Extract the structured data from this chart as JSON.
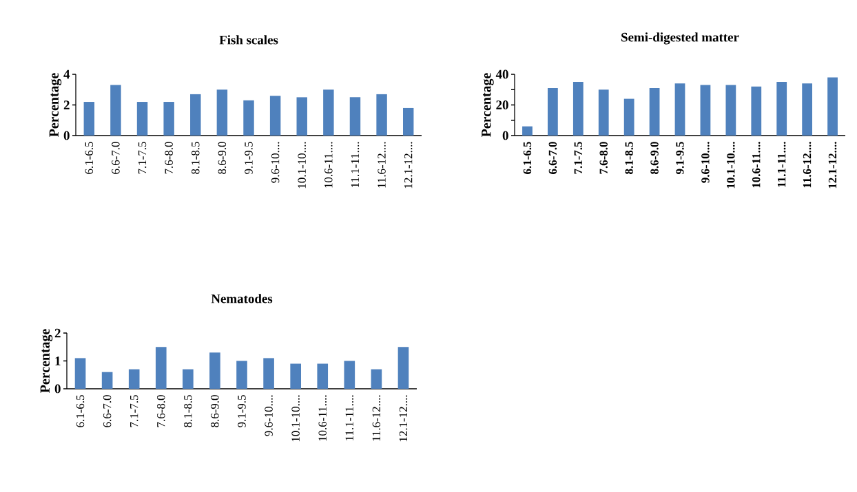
{
  "chart_data": [
    {
      "type": "bar",
      "title": "Fish scales",
      "ylabel": "Percentage",
      "categories": [
        "6.1-6.5",
        "6.6-7.0",
        "7.1-7.5",
        "7.6-8.0",
        "8.1-8.5",
        "8.6-9.0",
        "9.1-9.5",
        "9.6-10....",
        "10.1-10....",
        "10.6-11....",
        "11.1-11....",
        "11.6-12....",
        "12.1-12...."
      ],
      "values": [
        2.2,
        3.3,
        2.2,
        2.2,
        2.7,
        3.0,
        2.3,
        2.6,
        2.5,
        3.0,
        2.5,
        2.7,
        1.8
      ],
      "color": "#4f81bd",
      "ylim": [
        0,
        4
      ],
      "yticks": [
        0,
        2,
        4
      ]
    },
    {
      "type": "bar",
      "title": "Semi-digested matter",
      "ylabel": "Percentage",
      "categories": [
        "6.1-6.5",
        "6.6-7.0",
        "7.1-7.5",
        "7.6-8.0",
        "8.1-8.5",
        "8.6-9.0",
        "9.1-9.5",
        "9.6-10....",
        "10.1-10....",
        "10.6-11....",
        "11.1-11....",
        "11.6-12....",
        "12.1-12...."
      ],
      "values": [
        6,
        31,
        35,
        30,
        24,
        31,
        34,
        33,
        33,
        32,
        35,
        34,
        38
      ],
      "color": "#4f81bd",
      "ylim": [
        0,
        40
      ],
      "yticks": [
        0,
        {
          "value": 10,
          "label": null
        },
        20,
        {
          "value": 30,
          "label": null
        },
        40
      ]
    },
    {
      "type": "bar",
      "title": "Nematodes",
      "ylabel": "Percentage",
      "categories": [
        "6.1-6.5",
        "6.6-7.0",
        "7.1-7.5",
        "7.6-8.0",
        "8.1-8.5",
        "8.6-9.0",
        "9.1-9.5",
        "9.6-10....",
        "10.1-10....",
        "10.6-11....",
        "11.1-11....",
        "11.6-12....",
        "12.1-12...."
      ],
      "values": [
        1.1,
        0.6,
        0.7,
        1.5,
        0.7,
        1.3,
        1.0,
        1.1,
        0.9,
        0.9,
        1.0,
        0.7,
        1.5
      ],
      "color": "#4f81bd",
      "ylim": [
        0,
        2
      ],
      "yticks": [
        0,
        1,
        2
      ]
    }
  ]
}
